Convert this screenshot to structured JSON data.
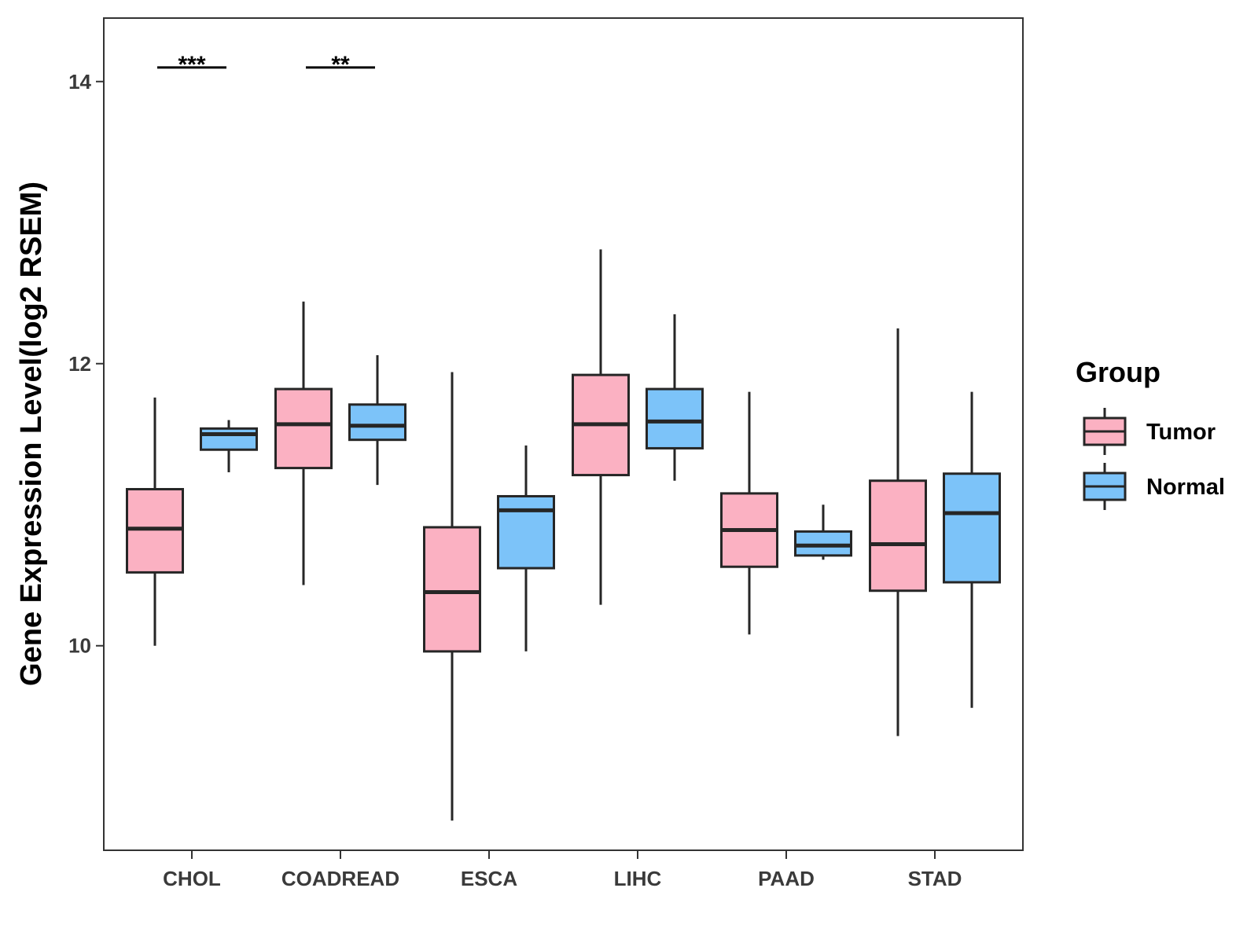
{
  "chart_data": {
    "type": "boxplot",
    "title": "",
    "xlabel": "",
    "ylabel": "Gene Expression Level(log2 RSEM)",
    "ylim": [
      8.55,
      14.45
    ],
    "yticks": [
      10,
      12,
      14
    ],
    "ytick_labels": [
      "10",
      "12",
      "14"
    ],
    "categories": [
      "CHOL",
      "COADREAD",
      "ESCA",
      "LIHC",
      "PAAD",
      "STAD"
    ],
    "legend": {
      "title": "Group",
      "position": "right",
      "entries": [
        "Tumor",
        "Normal"
      ]
    },
    "series": [
      {
        "name": "Tumor",
        "color": "#fbb1c2",
        "boxes": [
          {
            "lower_whisker": 10.0,
            "q1": 10.52,
            "median": 10.83,
            "q3": 11.11,
            "upper_whisker": 11.76
          },
          {
            "lower_whisker": 10.43,
            "q1": 11.26,
            "median": 11.57,
            "q3": 11.82,
            "upper_whisker": 12.44
          },
          {
            "lower_whisker": 8.76,
            "q1": 9.96,
            "median": 10.38,
            "q3": 10.84,
            "upper_whisker": 11.94
          },
          {
            "lower_whisker": 10.29,
            "q1": 11.21,
            "median": 11.57,
            "q3": 11.92,
            "upper_whisker": 12.81
          },
          {
            "lower_whisker": 10.08,
            "q1": 10.56,
            "median": 10.82,
            "q3": 11.08,
            "upper_whisker": 11.8
          },
          {
            "lower_whisker": 9.36,
            "q1": 10.39,
            "median": 10.72,
            "q3": 11.17,
            "upper_whisker": 12.25
          }
        ]
      },
      {
        "name": "Normal",
        "color": "#7cc3f9",
        "boxes": [
          {
            "lower_whisker": 11.23,
            "q1": 11.39,
            "median": 11.5,
            "q3": 11.54,
            "upper_whisker": 11.6
          },
          {
            "lower_whisker": 11.14,
            "q1": 11.46,
            "median": 11.56,
            "q3": 11.71,
            "upper_whisker": 12.06
          },
          {
            "lower_whisker": 9.96,
            "q1": 10.55,
            "median": 10.96,
            "q3": 11.06,
            "upper_whisker": 11.42
          },
          {
            "lower_whisker": 11.17,
            "q1": 11.4,
            "median": 11.59,
            "q3": 11.82,
            "upper_whisker": 12.35
          },
          {
            "lower_whisker": 10.61,
            "q1": 10.64,
            "median": 10.71,
            "q3": 10.81,
            "upper_whisker": 11.0
          },
          {
            "lower_whisker": 9.56,
            "q1": 10.45,
            "median": 10.94,
            "q3": 11.22,
            "upper_whisker": 11.8
          }
        ]
      }
    ],
    "annotations": [
      {
        "category": "CHOL",
        "label": "***",
        "y": 14.1
      },
      {
        "category": "COADREAD",
        "label": "**",
        "y": 14.1
      }
    ]
  }
}
